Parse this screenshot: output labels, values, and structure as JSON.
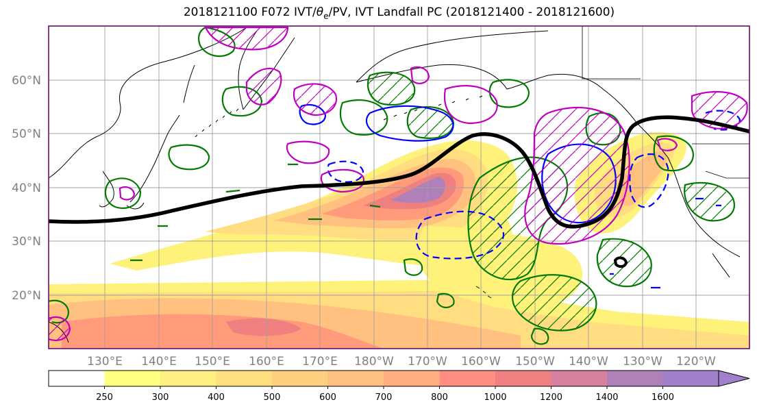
{
  "title": "2018121100 F072 IVT/θe/PV, IVT Landfall PC (2018121400 - 2018121600)",
  "title_parts": {
    "prefix": "2018121100 F072 IVT/",
    "theta": "θ",
    "sub": "e",
    "suffix": "/PV, IVT Landfall PC (2018121400 - 2018121600)"
  },
  "map": {
    "lat_labels": [
      "60°N",
      "50°N",
      "40°N",
      "30°N",
      "20°N"
    ],
    "lon_labels": [
      "130°E",
      "140°E",
      "150°E",
      "160°E",
      "170°E",
      "180°W",
      "170°W",
      "160°W",
      "150°W",
      "140°W",
      "130°W",
      "120°W"
    ],
    "colors": {
      "thick_line": "#000000",
      "theta_e_contour": "#007a00",
      "pv_contour_solid": "#0000ff",
      "pv_contour_dashed": "#0000ff",
      "pc_contour": "#c000c0",
      "coastline": "#000000",
      "grid": "#a0a0a0",
      "frame": "#6a0c6a"
    }
  },
  "colorbar": {
    "ticks": [
      "250",
      "300",
      "400",
      "500",
      "600",
      "700",
      "800",
      "1000",
      "1200",
      "1400",
      "1600"
    ],
    "colors": [
      "#ffffff",
      "#ffff80",
      "#ffef80",
      "#ffdf80",
      "#ffcf80",
      "#ffbf80",
      "#ffaf80",
      "#ff8c80",
      "#f08080",
      "#d880a0",
      "#b080b8",
      "#a080c8"
    ],
    "extend": "max"
  }
}
